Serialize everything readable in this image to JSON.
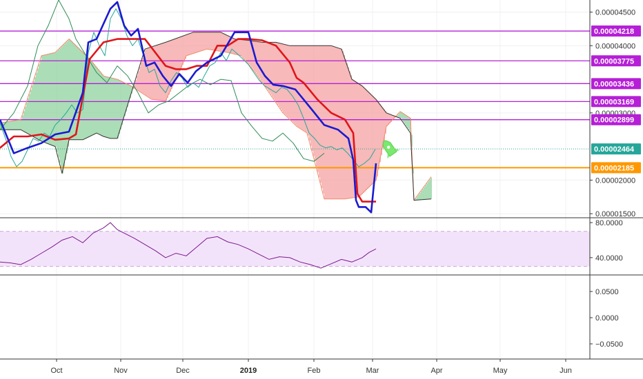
{
  "chart_data": [
    {
      "type": "line",
      "pane": "price",
      "grid": true,
      "ylim": [
        1.45e-05,
        4.68e-05
      ],
      "y_ticks": [
        "0.00004500",
        "0.00004000",
        "0.00003000",
        "0.00002000",
        "0.00001500"
      ],
      "price_levels": [
        {
          "label": "0.00004218",
          "value": 4.218e-05,
          "color": "#b51fd6"
        },
        {
          "label": "0.00003775",
          "value": 3.775e-05,
          "color": "#b51fd6"
        },
        {
          "label": "0.00003436",
          "value": 3.436e-05,
          "color": "#b51fd6"
        },
        {
          "label": "0.00003169",
          "value": 3.169e-05,
          "color": "#b51fd6"
        },
        {
          "label": "0.00002899",
          "value": 2.899e-05,
          "color": "#b51fd6"
        },
        {
          "label": "0.00002185",
          "value": 2.185e-05,
          "color": "#ff9800"
        }
      ],
      "last_price": {
        "label": "0.00002464",
        "value": 2.464e-05,
        "color": "#26a69a"
      },
      "series": [
        {
          "role": "price",
          "color": "#26a69a",
          "x": [
            0,
            8,
            16,
            24,
            32,
            40,
            48,
            56,
            64,
            72,
            80,
            88,
            96,
            104,
            112,
            120,
            128,
            136,
            144,
            152,
            160,
            168,
            176,
            184,
            192,
            200,
            208,
            216,
            224,
            232,
            240,
            248,
            256,
            264,
            272,
            280,
            288,
            296,
            304,
            312,
            320,
            328,
            336,
            344,
            352,
            360,
            368,
            376,
            384,
            392,
            400,
            408,
            416,
            424,
            432,
            440,
            448,
            456,
            464,
            472,
            480,
            488,
            496,
            504,
            512,
            520,
            528,
            536,
            544
          ],
          "values": [
            2.85e-05,
            2.62e-05,
            2.35e-05,
            2.2e-05,
            2.28e-05,
            2.45e-05,
            2.62e-05,
            2.58e-05,
            2.7e-05,
            2.65e-05,
            2.82e-05,
            2.9e-05,
            3e-05,
            3.12e-05,
            3e-05,
            3.05e-05,
            3.9e-05,
            4.2e-05,
            4e-05,
            3.85e-05,
            4.4e-05,
            4.55e-05,
            4.4e-05,
            4.15e-05,
            4e-05,
            4.1e-05,
            3.85e-05,
            3.6e-05,
            3.65e-05,
            3.4e-05,
            3.3e-05,
            3.48e-05,
            3.6e-05,
            3.52e-05,
            3.38e-05,
            3.45e-05,
            3.38e-05,
            3.55e-05,
            3.7e-05,
            3.75e-05,
            3.9e-05,
            3.78e-05,
            3.95e-05,
            3.88e-05,
            3.8e-05,
            3.72e-05,
            3.6e-05,
            3.48e-05,
            3.4e-05,
            3.35e-05,
            3.3e-05,
            3.38e-05,
            3.35e-05,
            3.25e-05,
            3.12e-05,
            2.92e-05,
            2.7e-05,
            2.62e-05,
            2.52e-05,
            2.48e-05,
            2.5e-05,
            2.45e-05,
            2.48e-05,
            2.4e-05,
            2.3e-05,
            2.2e-05,
            2.25e-05,
            2.32e-05,
            2.46e-05
          ]
        },
        {
          "role": "tenkan",
          "color": "#1a1ad1",
          "x": [
            0,
            20,
            40,
            60,
            80,
            100,
            120,
            128,
            140,
            160,
            170,
            180,
            190,
            200,
            212,
            224,
            236,
            248,
            260,
            272,
            284,
            300,
            320,
            340,
            360,
            372,
            384,
            396,
            410,
            428,
            440,
            452,
            470,
            490,
            505,
            512,
            516,
            520,
            530,
            538,
            545
          ],
          "values": [
            2.9e-05,
            2.4e-05,
            2.48e-05,
            2.55e-05,
            2.68e-05,
            2.72e-05,
            3.3e-05,
            4.05e-05,
            4.1e-05,
            4.55e-05,
            4.65e-05,
            4.3e-05,
            4.15e-05,
            4.25e-05,
            3.7e-05,
            3.75e-05,
            3.55e-05,
            3.4e-05,
            3.58e-05,
            3.45e-05,
            3.62e-05,
            3.75e-05,
            3.85e-05,
            4.2e-05,
            4.2e-05,
            3.75e-05,
            3.55e-05,
            3.42e-05,
            3.4e-05,
            3.35e-05,
            3.2e-05,
            3.05e-05,
            2.82e-05,
            2.75e-05,
            2.62e-05,
            2.3e-05,
            1.7e-05,
            1.6e-05,
            1.6e-05,
            1.52e-05,
            2.25e-05
          ]
        },
        {
          "role": "kijun",
          "color": "#e0151b",
          "x": [
            0,
            20,
            40,
            60,
            80,
            100,
            110,
            130,
            150,
            170,
            190,
            210,
            225,
            240,
            255,
            270,
            285,
            300,
            315,
            330,
            345,
            360,
            380,
            400,
            420,
            430,
            440,
            460,
            480,
            500,
            512,
            518,
            525,
            545
          ],
          "values": [
            2.48e-05,
            2.65e-05,
            2.65e-05,
            2.68e-05,
            2.6e-05,
            2.62e-05,
            2.68e-05,
            3.8e-05,
            4.05e-05,
            4.1e-05,
            4.1e-05,
            4.1e-05,
            3.9e-05,
            3.7e-05,
            3.65e-05,
            3.65e-05,
            3.7e-05,
            3.7e-05,
            4e-05,
            4e-05,
            4.1e-05,
            4.1e-05,
            4.08e-05,
            4e-05,
            3.75e-05,
            3.52e-05,
            3.45e-05,
            3.2e-05,
            3e-05,
            2.9e-05,
            2.7e-05,
            1.8e-05,
            1.68e-05,
            1.68e-05
          ]
        },
        {
          "role": "chikou",
          "color": "#2e8b57",
          "x": [
            0,
            20,
            40,
            55,
            70,
            85,
            100,
            110,
            125,
            140,
            155,
            170,
            185,
            200,
            215,
            230,
            245,
            260,
            275,
            290,
            305,
            320,
            335,
            350,
            365,
            380,
            395,
            410,
            425,
            440,
            455,
            470
          ],
          "values": [
            2.75e-05,
            3e-05,
            3.4e-05,
            4e-05,
            4.3e-05,
            4.68e-05,
            4.4e-05,
            4.1e-05,
            3.85e-05,
            3.6e-05,
            3.45e-05,
            3.7e-05,
            3.55e-05,
            3.3e-05,
            3e-05,
            3.12e-05,
            3.18e-05,
            3.3e-05,
            3.42e-05,
            3.5e-05,
            3.42e-05,
            3.5e-05,
            3.48e-05,
            3e-05,
            2.8e-05,
            2.62e-05,
            2.58e-05,
            2.7e-05,
            2.55e-05,
            2.32e-05,
            2.28e-05,
            2.4e-05
          ]
        },
        {
          "role": "span-b",
          "color": "#333333",
          "x": [
            0,
            30,
            60,
            80,
            90,
            100,
            120,
            140,
            150,
            160,
            170,
            200,
            210,
            240,
            280,
            300,
            320,
            340,
            360,
            380,
            400,
            420,
            440,
            460,
            480,
            495,
            510,
            525,
            545,
            560,
            580,
            595,
            600,
            625
          ],
          "values": [
            2.75e-05,
            2.75e-05,
            2.58e-05,
            2.5e-05,
            2.1e-05,
            2.6e-05,
            2.6e-05,
            2.7e-05,
            2.65e-05,
            2.62e-05,
            2.62e-05,
            3.62e-05,
            3.95e-05,
            4.05e-05,
            4.2e-05,
            4.2e-05,
            4.2e-05,
            4.1e-05,
            4.08e-05,
            4.05e-05,
            4.05e-05,
            4e-05,
            4e-05,
            4e-05,
            4e-05,
            3.95e-05,
            3.5e-05,
            3.4e-05,
            3.2e-05,
            3e-05,
            2.92e-05,
            2.7e-05,
            1.7e-05,
            1.72e-05
          ]
        },
        {
          "role": "span-a",
          "color": "#f28c6b",
          "x": [
            0,
            30,
            60,
            80,
            100,
            130,
            150,
            170,
            190,
            220,
            240,
            270,
            300,
            330,
            350,
            370,
            390,
            410,
            430,
            445,
            455,
            470,
            500,
            520,
            545,
            560,
            580,
            595,
            600,
            625
          ],
          "values": [
            2.85e-05,
            2.9e-05,
            3.85e-05,
            3.9e-05,
            4.1e-05,
            3.8e-05,
            3.55e-05,
            3.5e-05,
            3.4e-05,
            3.2e-05,
            3.18e-05,
            3.85e-05,
            3.95e-05,
            3.9e-05,
            3.85e-05,
            3.6e-05,
            3.3e-05,
            3e-05,
            2.8e-05,
            2.7e-05,
            2.32e-05,
            1.72e-05,
            1.72e-05,
            1.75e-05,
            2e-05,
            2.8e-05,
            3.02e-05,
            2.92e-05,
            1.7e-05,
            2.05e-05
          ]
        }
      ]
    },
    {
      "type": "line",
      "pane": "oscillator",
      "grid": true,
      "ylim": [
        21,
        84
      ],
      "y_ticks": [
        "80.0000",
        "40.0000"
      ],
      "band": [
        30,
        70
      ],
      "band_color": "#f3e3fa",
      "series": [
        {
          "role": "oscillator",
          "color": "#7b1a8f",
          "x": [
            0,
            15,
            30,
            45,
            60,
            75,
            90,
            105,
            120,
            135,
            150,
            160,
            170,
            180,
            195,
            210,
            225,
            240,
            255,
            270,
            285,
            300,
            315,
            330,
            345,
            360,
            375,
            390,
            405,
            420,
            435,
            450,
            465,
            480,
            495,
            510,
            525,
            535,
            545
          ],
          "values": [
            35,
            34,
            32,
            38,
            45,
            52,
            60,
            64,
            57,
            68,
            74,
            80,
            72,
            68,
            62,
            55,
            48,
            40,
            45,
            42,
            52,
            62,
            64,
            58,
            55,
            50,
            44,
            38,
            41,
            40,
            35,
            32,
            28,
            33,
            38,
            35,
            40,
            46,
            50
          ]
        }
      ]
    },
    {
      "type": "line",
      "pane": "empty",
      "y_ticks": [
        "0.0500",
        "0.0000",
        "−0.0500"
      ],
      "series": []
    }
  ],
  "time_axis": [
    {
      "label": "Oct",
      "bold": false
    },
    {
      "label": "Nov",
      "bold": false
    },
    {
      "label": "Dec",
      "bold": false
    },
    {
      "label": "2019",
      "bold": true
    },
    {
      "label": "Feb",
      "bold": false
    },
    {
      "label": "Mar",
      "bold": false
    },
    {
      "label": "Apr",
      "bold": false
    },
    {
      "label": "May",
      "bold": false
    },
    {
      "label": "Jun",
      "bold": false
    }
  ],
  "colors": {
    "cloud_bull": "#8fd19e",
    "cloud_bear": "#f4a1a1",
    "annotation": "#7be86f",
    "axis": "#333333",
    "grid": "#f0f0f0"
  },
  "annotations": [
    {
      "icon": "rocket-icon"
    }
  ]
}
